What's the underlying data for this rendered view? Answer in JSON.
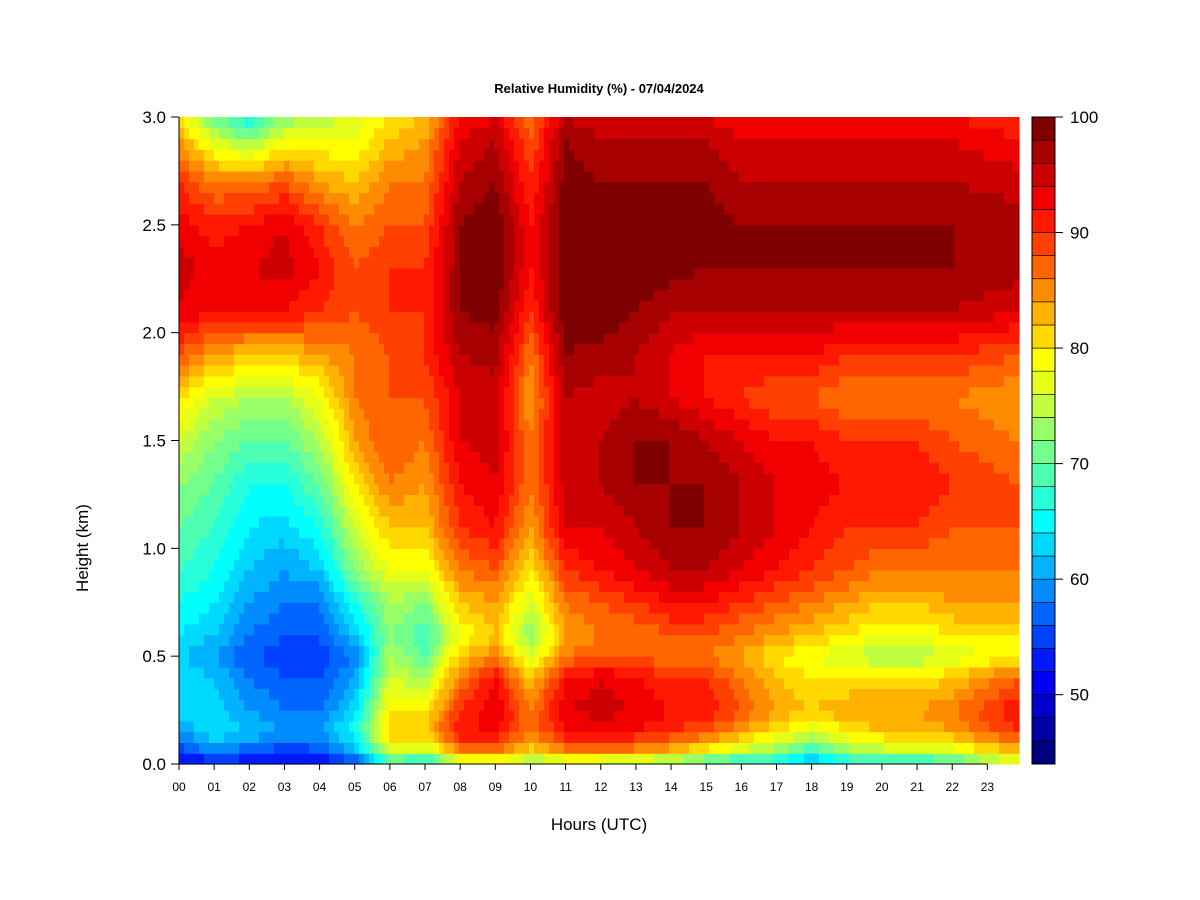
{
  "chart_data": {
    "type": "heatmap",
    "title": "Relative Humidity (%) - 07/04/2024",
    "xlabel": "Hours (UTC)",
    "ylabel": "Height (km)",
    "xlim": [
      0,
      23.9
    ],
    "ylim": [
      0,
      3.0
    ],
    "x_ticks": [
      "00",
      "01",
      "02",
      "03",
      "04",
      "05",
      "06",
      "07",
      "08",
      "09",
      "10",
      "11",
      "12",
      "13",
      "14",
      "15",
      "16",
      "17",
      "18",
      "19",
      "20",
      "21",
      "22",
      "23"
    ],
    "y_ticks": [
      "0.0",
      "0.5",
      "1.0",
      "1.5",
      "2.0",
      "2.5",
      "3.0"
    ],
    "colorbar": {
      "min": 44,
      "max": 100,
      "step": 2,
      "tick_labels": [
        "50",
        "60",
        "70",
        "80",
        "90",
        "100"
      ],
      "tick_values": [
        50,
        60,
        70,
        80,
        90,
        100
      ],
      "colors": [
        "#00007f",
        "#0000a6",
        "#0000cc",
        "#0000f2",
        "#0019ff",
        "#0040ff",
        "#0066ff",
        "#008cff",
        "#00b3ff",
        "#00d9ff",
        "#00ffff",
        "#26ffd9",
        "#4cffb3",
        "#73ff8c",
        "#99ff66",
        "#c0ff40",
        "#e6ff19",
        "#ffff00",
        "#ffd900",
        "#ffb300",
        "#ff8c00",
        "#ff6600",
        "#ff4000",
        "#ff1900",
        "#f20000",
        "#cc0000",
        "#a60000",
        "#7f0000"
      ]
    },
    "rh_profile_hours": [
      0,
      1,
      2,
      3,
      4,
      5,
      6,
      7,
      8,
      9,
      10,
      11,
      12,
      13,
      14,
      15,
      16,
      17,
      18,
      19,
      20,
      21,
      22,
      23.9
    ],
    "rh_profile_heights_km": [
      0.0,
      0.05,
      0.15,
      0.25,
      0.4,
      0.5,
      0.6,
      0.75,
      0.9,
      1.1,
      1.3,
      1.5,
      1.7,
      1.9,
      2.1,
      2.3,
      2.5,
      2.7,
      2.9,
      3.0
    ],
    "rh_profile_values": [
      [
        50,
        54,
        60,
        63,
        64,
        62,
        64,
        66,
        68,
        70,
        72,
        76,
        80,
        88,
        94,
        95,
        93,
        90,
        84,
        80
      ],
      [
        52,
        58,
        64,
        63,
        62,
        60,
        62,
        64,
        66,
        68,
        70,
        72,
        76,
        84,
        92,
        93,
        91,
        86,
        76,
        70
      ],
      [
        51,
        56,
        62,
        60,
        58,
        56,
        58,
        60,
        62,
        64,
        66,
        70,
        74,
        82,
        92,
        94,
        92,
        86,
        72,
        66
      ],
      [
        50,
        54,
        60,
        58,
        56,
        55,
        56,
        58,
        60,
        63,
        66,
        70,
        74,
        82,
        92,
        95,
        94,
        88,
        78,
        72
      ],
      [
        51,
        55,
        60,
        58,
        56,
        55,
        56,
        58,
        62,
        66,
        70,
        74,
        78,
        84,
        90,
        92,
        90,
        84,
        78,
        74
      ],
      [
        54,
        60,
        66,
        63,
        60,
        58,
        62,
        66,
        72,
        76,
        80,
        84,
        86,
        86,
        88,
        88,
        86,
        82,
        78,
        77
      ],
      [
        66,
        76,
        82,
        80,
        76,
        74,
        72,
        74,
        78,
        82,
        86,
        88,
        88,
        88,
        90,
        90,
        88,
        86,
        82,
        80
      ],
      [
        62,
        74,
        82,
        80,
        74,
        70,
        68,
        72,
        78,
        82,
        84,
        86,
        88,
        90,
        90,
        90,
        88,
        86,
        84,
        82
      ],
      [
        72,
        84,
        92,
        90,
        86,
        82,
        78,
        82,
        86,
        90,
        92,
        94,
        94,
        96,
        98,
        98,
        98,
        96,
        94,
        92
      ],
      [
        74,
        86,
        92,
        94,
        92,
        86,
        82,
        84,
        88,
        92,
        94,
        95,
        95,
        97,
        99,
        100,
        100,
        98,
        96,
        94
      ],
      [
        70,
        80,
        86,
        86,
        82,
        76,
        72,
        76,
        80,
        84,
        86,
        86,
        84,
        86,
        90,
        92,
        92,
        90,
        88,
        86
      ],
      [
        72,
        84,
        92,
        94,
        92,
        86,
        84,
        86,
        90,
        94,
        95,
        96,
        96,
        98,
        100,
        100,
        100,
        99,
        98,
        96
      ],
      [
        72,
        84,
        92,
        95,
        94,
        88,
        86,
        88,
        92,
        94,
        96,
        96,
        95,
        97,
        100,
        100,
        100,
        98,
        96,
        94
      ],
      [
        70,
        84,
        92,
        94,
        92,
        88,
        86,
        90,
        94,
        96,
        98,
        98,
        96,
        96,
        98,
        100,
        100,
        98,
        96,
        94
      ],
      [
        68,
        82,
        90,
        92,
        90,
        86,
        88,
        92,
        96,
        98,
        98,
        98,
        94,
        94,
        96,
        99,
        99,
        98,
        96,
        94
      ],
      [
        66,
        78,
        88,
        92,
        90,
        86,
        88,
        92,
        96,
        98,
        98,
        96,
        92,
        92,
        96,
        98,
        99,
        98,
        96,
        94
      ],
      [
        64,
        74,
        84,
        88,
        86,
        84,
        86,
        90,
        94,
        96,
        96,
        94,
        90,
        92,
        96,
        98,
        98,
        96,
        94,
        92
      ],
      [
        64,
        72,
        80,
        84,
        82,
        80,
        84,
        88,
        92,
        94,
        94,
        92,
        88,
        92,
        96,
        98,
        98,
        96,
        94,
        92
      ],
      [
        60,
        66,
        76,
        82,
        80,
        78,
        82,
        86,
        90,
        92,
        93,
        92,
        88,
        92,
        96,
        98,
        98,
        96,
        94,
        92
      ],
      [
        64,
        72,
        80,
        84,
        80,
        76,
        80,
        84,
        88,
        90,
        92,
        90,
        86,
        90,
        96,
        98,
        98,
        96,
        94,
        92
      ],
      [
        66,
        74,
        82,
        84,
        80,
        74,
        78,
        82,
        86,
        90,
        92,
        90,
        86,
        90,
        96,
        98,
        98,
        96,
        94,
        92
      ],
      [
        64,
        74,
        82,
        84,
        80,
        74,
        78,
        82,
        86,
        90,
        92,
        90,
        86,
        90,
        96,
        98,
        98,
        96,
        94,
        92
      ],
      [
        66,
        76,
        84,
        86,
        82,
        76,
        80,
        84,
        86,
        88,
        90,
        88,
        86,
        90,
        96,
        98,
        98,
        96,
        94,
        92
      ],
      [
        74,
        82,
        90,
        92,
        88,
        80,
        80,
        84,
        86,
        88,
        88,
        86,
        84,
        88,
        94,
        97,
        97,
        95,
        92,
        90
      ]
    ],
    "grid": false,
    "legend_position": "right"
  }
}
